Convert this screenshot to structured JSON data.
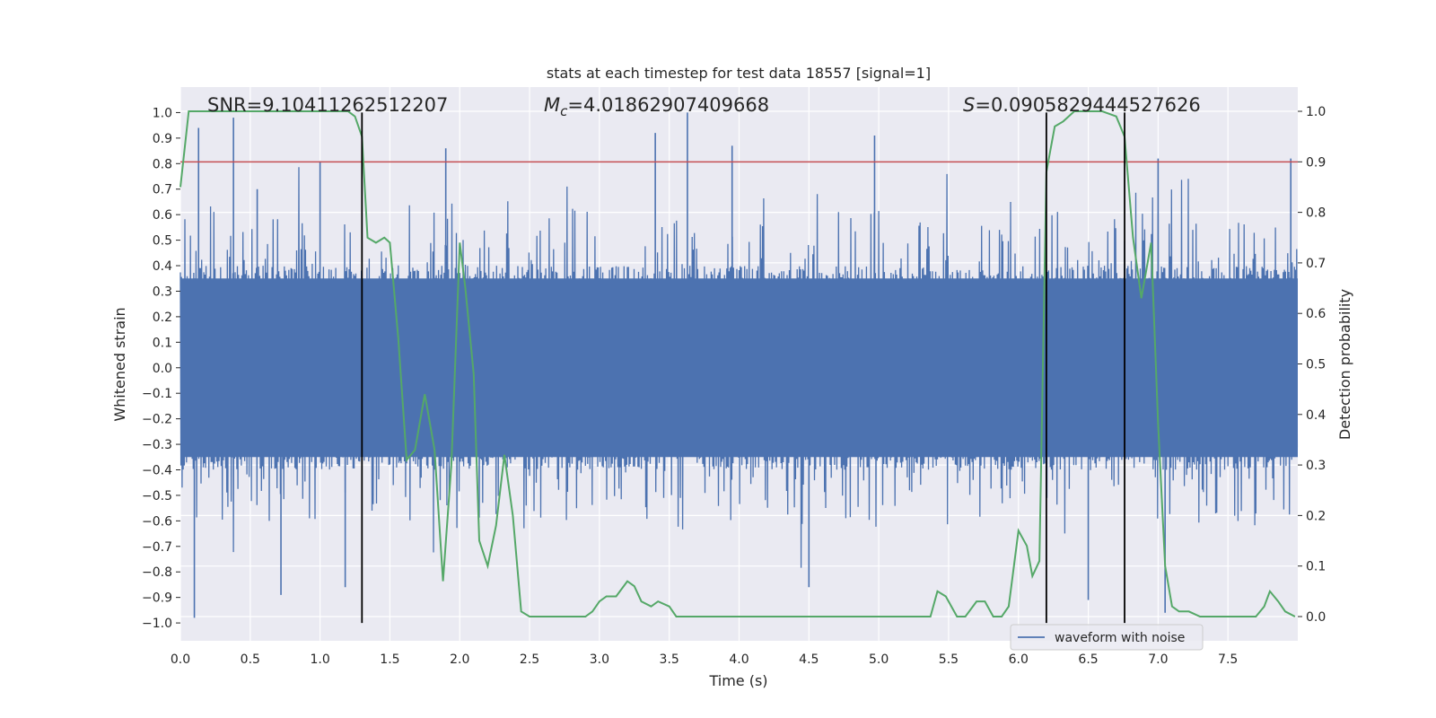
{
  "chart_data": {
    "type": "line",
    "title": "stats at each timestep for test data 18557 [signal=1]",
    "xlabel": "Time (s)",
    "ylabel": "Whitened strain",
    "y2label": "Detection probability",
    "xlim": [
      0.0,
      8.0
    ],
    "ylim": [
      -1.07,
      1.1
    ],
    "y2lim": [
      -0.048,
      1.048
    ],
    "x_ticks": [
      0.0,
      0.5,
      1.0,
      1.5,
      2.0,
      2.5,
      3.0,
      3.5,
      4.0,
      4.5,
      5.0,
      5.5,
      6.0,
      6.5,
      7.0,
      7.5
    ],
    "x_tick_labels": [
      "0.0",
      "0.5",
      "1.0",
      "1.5",
      "2.0",
      "2.5",
      "3.0",
      "3.5",
      "4.0",
      "4.5",
      "5.0",
      "5.5",
      "6.0",
      "6.5",
      "7.0",
      "7.5"
    ],
    "y_ticks": [
      -1.0,
      -0.9,
      -0.8,
      -0.7,
      -0.6,
      -0.5,
      -0.4,
      -0.3,
      -0.2,
      -0.1,
      0.0,
      0.1,
      0.2,
      0.3,
      0.4,
      0.5,
      0.6,
      0.7,
      0.8,
      0.9,
      1.0
    ],
    "y_tick_labels": [
      "−1.0",
      "−0.9",
      "−0.8",
      "−0.7",
      "−0.6",
      "−0.5",
      "−0.4",
      "−0.3",
      "−0.2",
      "−0.1",
      "0.0",
      "0.1",
      "0.2",
      "0.3",
      "0.4",
      "0.5",
      "0.6",
      "0.7",
      "0.8",
      "0.9",
      "1.0"
    ],
    "y2_ticks": [
      0.0,
      0.1,
      0.2,
      0.3,
      0.4,
      0.5,
      0.6,
      0.7,
      0.8,
      0.9,
      1.0
    ],
    "y2_tick_labels": [
      "0.0",
      "0.1",
      "0.2",
      "0.3",
      "0.4",
      "0.5",
      "0.6",
      "0.7",
      "0.8",
      "0.9",
      "1.0"
    ],
    "grid": true,
    "legend": {
      "location": "lower-right",
      "entries": [
        "waveform with noise"
      ]
    },
    "annotations": {
      "snr": "SNR=9.10411262512207",
      "mc_symbol": "M",
      "mc_subscript": "c",
      "mc_value": "=4.01862907409668",
      "s_symbol": "S",
      "s_value": "=0.0905829444527626"
    },
    "colors": {
      "background": "#eaeaf2",
      "grid": "#ffffff",
      "waveform": "#4c72b0",
      "probability": "#55a868",
      "threshold": "#c44e52",
      "markers": "#000000"
    },
    "series": [
      {
        "name": "waveform with noise",
        "axis": "left",
        "style": "noise",
        "n_samples": 2000,
        "envelope_low": [
          -0.35,
          0.35
        ],
        "peak_clusters": [
          {
            "x": 0.13,
            "y": 0.94
          },
          {
            "x": 0.38,
            "y": 0.98
          },
          {
            "x": 0.55,
            "y": 0.7
          },
          {
            "x": 0.72,
            "y": -0.89
          },
          {
            "x": 0.1,
            "y": -0.98
          },
          {
            "x": 1.0,
            "y": 0.81
          },
          {
            "x": 1.18,
            "y": -0.86
          },
          {
            "x": 1.9,
            "y": 0.86
          },
          {
            "x": 3.4,
            "y": 0.92
          },
          {
            "x": 3.63,
            "y": 1.0
          },
          {
            "x": 3.95,
            "y": 0.87
          },
          {
            "x": 4.97,
            "y": 0.91
          },
          {
            "x": 4.5,
            "y": -0.86
          },
          {
            "x": 7.05,
            "y": -0.96
          },
          {
            "x": 6.5,
            "y": -0.91
          },
          {
            "x": 7.0,
            "y": 0.82
          },
          {
            "x": 7.95,
            "y": 0.82
          }
        ]
      },
      {
        "name": "detection probability",
        "axis": "right",
        "style": "line",
        "x": [
          0.0,
          0.06,
          0.12,
          0.2,
          0.4,
          0.6,
          0.8,
          1.0,
          1.2,
          1.25,
          1.3,
          1.34,
          1.4,
          1.46,
          1.5,
          1.56,
          1.62,
          1.68,
          1.75,
          1.82,
          1.88,
          1.94,
          2.0,
          2.04,
          2.1,
          2.14,
          2.2,
          2.26,
          2.32,
          2.38,
          2.44,
          2.5,
          2.6,
          2.7,
          2.8,
          2.9,
          2.95,
          3.0,
          3.05,
          3.12,
          3.2,
          3.25,
          3.3,
          3.37,
          3.42,
          3.5,
          3.55,
          3.6,
          3.8,
          4.0,
          4.5,
          4.75,
          5.0,
          5.3,
          5.37,
          5.42,
          5.48,
          5.56,
          5.62,
          5.7,
          5.76,
          5.82,
          5.88,
          5.93,
          6.0,
          6.06,
          6.1,
          6.15,
          6.2,
          6.26,
          6.32,
          6.4,
          6.5,
          6.6,
          6.7,
          6.76,
          6.82,
          6.88,
          6.95,
          7.0,
          7.05,
          7.1,
          7.15,
          7.22,
          7.3,
          7.35,
          7.4,
          7.5,
          7.7,
          7.76,
          7.8,
          7.86,
          7.91,
          7.98
        ],
        "y": [
          0.85,
          1.0,
          1.0,
          1.0,
          1.0,
          1.0,
          1.0,
          1.0,
          1.0,
          0.99,
          0.95,
          0.75,
          0.74,
          0.75,
          0.74,
          0.55,
          0.31,
          0.33,
          0.44,
          0.33,
          0.07,
          0.3,
          0.74,
          0.65,
          0.48,
          0.15,
          0.1,
          0.18,
          0.32,
          0.2,
          0.01,
          0.0,
          0.0,
          0.0,
          0.0,
          0.0,
          0.01,
          0.03,
          0.04,
          0.04,
          0.07,
          0.06,
          0.03,
          0.02,
          0.03,
          0.02,
          0.0,
          0.0,
          0.0,
          0.0,
          0.0,
          0.0,
          0.0,
          0.0,
          0.0,
          0.05,
          0.04,
          0.0,
          0.0,
          0.03,
          0.03,
          0.0,
          0.0,
          0.02,
          0.17,
          0.14,
          0.08,
          0.11,
          0.88,
          0.97,
          0.98,
          1.0,
          1.0,
          1.0,
          0.99,
          0.95,
          0.75,
          0.63,
          0.74,
          0.38,
          0.1,
          0.02,
          0.01,
          0.01,
          0.0,
          0.0,
          0.0,
          0.0,
          0.0,
          0.02,
          0.05,
          0.03,
          0.01,
          0.0
        ]
      },
      {
        "name": "threshold",
        "axis": "right",
        "style": "hline",
        "y": 0.9
      }
    ],
    "vertical_markers_x": [
      1.3,
      6.2,
      6.76
    ]
  }
}
